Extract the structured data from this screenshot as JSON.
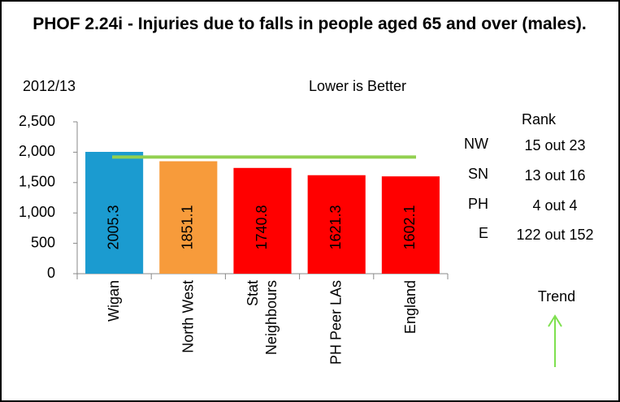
{
  "chart_data": {
    "type": "bar",
    "title": "PHOF 2.24i - Injuries due to falls in people aged 65 and over (males).",
    "period": "2012/13",
    "subtitle": "Lower is Better",
    "categories": [
      "Wigan",
      "North West",
      "Stat Neighbours",
      "PH Peer LAs",
      "England"
    ],
    "values": [
      2005.3,
      1851.1,
      1740.8,
      1621.3,
      1602.1
    ],
    "colors": [
      "#1b9bd0",
      "#f79b3b",
      "#ff0000",
      "#ff0000",
      "#ff0000"
    ],
    "reference_line": {
      "value": 1920,
      "color": "#92d050"
    },
    "ylim": [
      0,
      2500
    ],
    "yticks": [
      0,
      500,
      {
        "value": 1000,
        "label": "1,000"
      },
      {
        "value": 1500,
        "label": "1,500"
      },
      {
        "value": 2000,
        "label": "2,000"
      },
      {
        "value": 2500,
        "label": "2,500"
      }
    ],
    "grid": false,
    "rank": {
      "header": "Rank",
      "rows": [
        [
          "NW",
          "15 out 23"
        ],
        [
          "SN",
          "13 out 16"
        ],
        [
          "PH",
          "4 out 4"
        ],
        [
          "E",
          "122 out 152"
        ]
      ]
    },
    "trend": {
      "label": "Trend",
      "direction": "up"
    }
  }
}
